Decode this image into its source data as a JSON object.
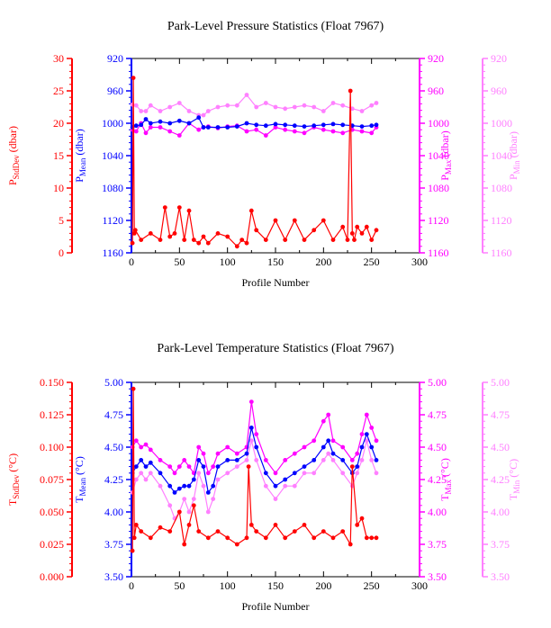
{
  "chart_data": [
    {
      "type": "line",
      "title": "Park-Level Pressure Statistics (Float 7967)",
      "xlabel": "Profile Number",
      "xlim": [
        0,
        300
      ],
      "xticks": [
        "0",
        "50",
        "100",
        "150",
        "200",
        "250",
        "300"
      ],
      "axes": [
        {
          "id": "stddev",
          "label_main": "P",
          "label_sub": "StdDev",
          "label_unit": " (dbar)",
          "color": "#ff0000",
          "side": "left-outer",
          "range": [
            0,
            30
          ],
          "ticks": [
            "0",
            "5",
            "10",
            "15",
            "20",
            "25",
            "30"
          ]
        },
        {
          "id": "mean",
          "label_main": "P",
          "label_sub": "Mean",
          "label_unit": " (dbar)",
          "color": "#0000ff",
          "side": "left-inner",
          "range": [
            1160,
            920
          ],
          "ticks": [
            "1160",
            "1120",
            "1080",
            "1040",
            "1000",
            "960",
            "920"
          ]
        },
        {
          "id": "max",
          "label_main": "P",
          "label_sub": "Max",
          "label_unit": " (dbar)",
          "color": "#ff00ff",
          "side": "right-inner",
          "range": [
            1160,
            920
          ],
          "ticks": [
            "1160",
            "1120",
            "1080",
            "1040",
            "1000",
            "960",
            "920"
          ]
        },
        {
          "id": "min",
          "label_main": "P",
          "label_sub": "Min",
          "label_unit": " (dbar)",
          "color": "#ff80ff",
          "side": "right-outer",
          "range": [
            1160,
            920
          ],
          "ticks": [
            "1160",
            "1120",
            "1080",
            "1040",
            "1000",
            "960",
            "920"
          ]
        }
      ],
      "series": [
        {
          "axis": "stddev",
          "color": "#ff0000",
          "x": [
            1,
            2,
            3,
            4,
            10,
            20,
            30,
            35,
            40,
            45,
            50,
            55,
            60,
            65,
            70,
            75,
            80,
            90,
            100,
            110,
            115,
            120,
            125,
            130,
            140,
            150,
            160,
            170,
            180,
            190,
            200,
            210,
            220,
            225,
            228,
            230,
            232,
            235,
            240,
            245,
            250,
            255
          ],
          "y": [
            1.5,
            27,
            3,
            3.5,
            2,
            3,
            2,
            7,
            2.5,
            3,
            7,
            2,
            6.5,
            2,
            1.5,
            2.5,
            1.5,
            3,
            2.5,
            1,
            2,
            1.5,
            6.5,
            3.5,
            2,
            5,
            2,
            5,
            2,
            3.5,
            5,
            2,
            4,
            2,
            25,
            3,
            2,
            4,
            3,
            4,
            2,
            3.5
          ]
        },
        {
          "axis": "mean",
          "color": "#0000ff",
          "x": [
            1,
            5,
            10,
            15,
            20,
            30,
            40,
            50,
            60,
            70,
            75,
            80,
            90,
            100,
            110,
            120,
            130,
            140,
            150,
            160,
            170,
            180,
            190,
            200,
            210,
            220,
            230,
            240,
            250,
            255
          ],
          "y": [
            1005,
            1003,
            1002,
            995,
            1000,
            998,
            1000,
            997,
            1000,
            993,
            1005,
            1005,
            1005,
            1005,
            1004,
            1000,
            1002,
            1003,
            1001,
            1002,
            1003,
            1004,
            1003,
            1002,
            1001,
            1002,
            1003,
            1004,
            1003,
            1002
          ]
        },
        {
          "axis": "max",
          "color": "#ff00ff",
          "x": [
            1,
            5,
            10,
            15,
            20,
            30,
            40,
            50,
            60,
            70,
            75,
            80,
            90,
            100,
            110,
            120,
            130,
            140,
            150,
            160,
            170,
            180,
            190,
            200,
            210,
            220,
            230,
            240,
            250,
            255
          ],
          "y": [
            1008,
            1010,
            1000,
            1012,
            1005,
            1005,
            1010,
            1015,
            1000,
            1008,
            1005,
            1004,
            1006,
            1004,
            1003,
            1010,
            1008,
            1015,
            1005,
            1008,
            1010,
            1012,
            1005,
            1008,
            1010,
            1012,
            1008,
            1010,
            1012,
            1005
          ]
        },
        {
          "axis": "min",
          "color": "#ff80ff",
          "x": [
            1,
            5,
            10,
            15,
            20,
            30,
            40,
            50,
            60,
            70,
            75,
            80,
            90,
            100,
            110,
            120,
            130,
            140,
            150,
            160,
            170,
            180,
            190,
            200,
            210,
            220,
            230,
            240,
            250,
            255
          ],
          "y": [
            977,
            978,
            985,
            985,
            978,
            985,
            980,
            975,
            985,
            990,
            990,
            985,
            980,
            978,
            978,
            965,
            980,
            975,
            980,
            982,
            980,
            978,
            980,
            985,
            975,
            978,
            982,
            985,
            978,
            975
          ]
        }
      ]
    },
    {
      "type": "line",
      "title": "Park-Level Temperature Statistics (Float 7967)",
      "xlabel": "Profile Number",
      "xlim": [
        0,
        300
      ],
      "xticks": [
        "0",
        "50",
        "100",
        "150",
        "200",
        "250",
        "300"
      ],
      "axes": [
        {
          "id": "stddev",
          "label_main": "T",
          "label_sub": "StdDev",
          "label_unit": " (°C)",
          "color": "#ff0000",
          "side": "left-outer",
          "range": [
            0,
            0.15
          ],
          "ticks": [
            "0.000",
            "0.025",
            "0.050",
            "0.075",
            "0.100",
            "0.125",
            "0.150"
          ]
        },
        {
          "id": "mean",
          "label_main": "T",
          "label_sub": "Mean",
          "label_unit": " (°C)",
          "color": "#0000ff",
          "side": "left-inner",
          "range": [
            3.5,
            5.0
          ],
          "ticks": [
            "3.50",
            "3.75",
            "4.00",
            "4.25",
            "4.50",
            "4.75",
            "5.00"
          ]
        },
        {
          "id": "max",
          "label_main": "T",
          "label_sub": "Max",
          "label_unit": " (°C)",
          "color": "#ff00ff",
          "side": "right-inner",
          "range": [
            3.5,
            5.0
          ],
          "ticks": [
            "3.50",
            "3.75",
            "4.00",
            "4.25",
            "4.50",
            "4.75",
            "5.00"
          ]
        },
        {
          "id": "min",
          "label_main": "T",
          "label_sub": "Min",
          "label_unit": " (°C)",
          "color": "#ff80ff",
          "side": "right-outer",
          "range": [
            3.5,
            5.0
          ],
          "ticks": [
            "3.50",
            "3.75",
            "4.00",
            "4.25",
            "4.50",
            "4.75",
            "5.00"
          ]
        }
      ],
      "series": [
        {
          "axis": "stddev",
          "color": "#ff0000",
          "x": [
            1,
            2,
            3,
            5,
            10,
            20,
            30,
            40,
            50,
            55,
            60,
            65,
            70,
            80,
            90,
            100,
            110,
            120,
            122,
            125,
            130,
            140,
            150,
            160,
            170,
            180,
            190,
            200,
            210,
            220,
            228,
            230,
            235,
            240,
            245,
            250,
            255
          ],
          "y": [
            0.02,
            0.145,
            0.03,
            0.04,
            0.035,
            0.03,
            0.038,
            0.035,
            0.05,
            0.025,
            0.04,
            0.055,
            0.035,
            0.03,
            0.035,
            0.03,
            0.025,
            0.03,
            0.085,
            0.04,
            0.035,
            0.03,
            0.04,
            0.03,
            0.035,
            0.04,
            0.03,
            0.035,
            0.03,
            0.035,
            0.025,
            0.085,
            0.04,
            0.045,
            0.03,
            0.03,
            0.03
          ]
        },
        {
          "axis": "mean",
          "color": "#0000ff",
          "x": [
            1,
            5,
            10,
            15,
            20,
            30,
            40,
            45,
            50,
            55,
            60,
            65,
            70,
            75,
            80,
            85,
            90,
            100,
            110,
            120,
            125,
            130,
            140,
            150,
            160,
            170,
            180,
            190,
            200,
            205,
            210,
            220,
            230,
            235,
            240,
            245,
            250,
            255
          ],
          "y": [
            4.3,
            4.35,
            4.4,
            4.35,
            4.38,
            4.3,
            4.2,
            4.15,
            4.18,
            4.2,
            4.2,
            4.25,
            4.4,
            4.35,
            4.15,
            4.2,
            4.35,
            4.4,
            4.4,
            4.45,
            4.65,
            4.5,
            4.3,
            4.2,
            4.25,
            4.3,
            4.35,
            4.4,
            4.5,
            4.55,
            4.45,
            4.4,
            4.3,
            4.35,
            4.5,
            4.6,
            4.5,
            4.4
          ]
        },
        {
          "axis": "max",
          "color": "#ff00ff",
          "x": [
            1,
            5,
            10,
            15,
            20,
            30,
            40,
            45,
            50,
            55,
            60,
            65,
            70,
            75,
            80,
            85,
            90,
            100,
            110,
            120,
            125,
            130,
            140,
            150,
            160,
            170,
            180,
            190,
            200,
            205,
            210,
            220,
            230,
            235,
            240,
            245,
            250,
            255
          ],
          "y": [
            4.5,
            4.55,
            4.5,
            4.52,
            4.48,
            4.4,
            4.35,
            4.3,
            4.35,
            4.4,
            4.35,
            4.3,
            4.5,
            4.45,
            4.3,
            4.35,
            4.45,
            4.5,
            4.45,
            4.5,
            4.85,
            4.6,
            4.4,
            4.3,
            4.4,
            4.45,
            4.5,
            4.55,
            4.7,
            4.75,
            4.55,
            4.5,
            4.4,
            4.45,
            4.6,
            4.75,
            4.65,
            4.55
          ]
        },
        {
          "axis": "min",
          "color": "#ff80ff",
          "x": [
            1,
            5,
            10,
            15,
            20,
            30,
            40,
            45,
            50,
            55,
            60,
            65,
            70,
            75,
            80,
            85,
            90,
            100,
            110,
            120,
            125,
            130,
            140,
            150,
            160,
            170,
            180,
            190,
            200,
            205,
            210,
            220,
            230,
            235,
            240,
            245,
            250,
            255
          ],
          "y": [
            4.15,
            4.25,
            4.3,
            4.25,
            4.3,
            4.2,
            4.05,
            3.95,
            4.0,
            4.1,
            4.0,
            4.1,
            4.3,
            4.2,
            4.0,
            4.1,
            4.25,
            4.3,
            4.35,
            4.4,
            4.55,
            4.4,
            4.2,
            4.1,
            4.2,
            4.2,
            4.3,
            4.3,
            4.4,
            4.45,
            4.4,
            4.3,
            4.2,
            4.3,
            4.4,
            4.55,
            4.4,
            4.3
          ]
        }
      ]
    }
  ]
}
